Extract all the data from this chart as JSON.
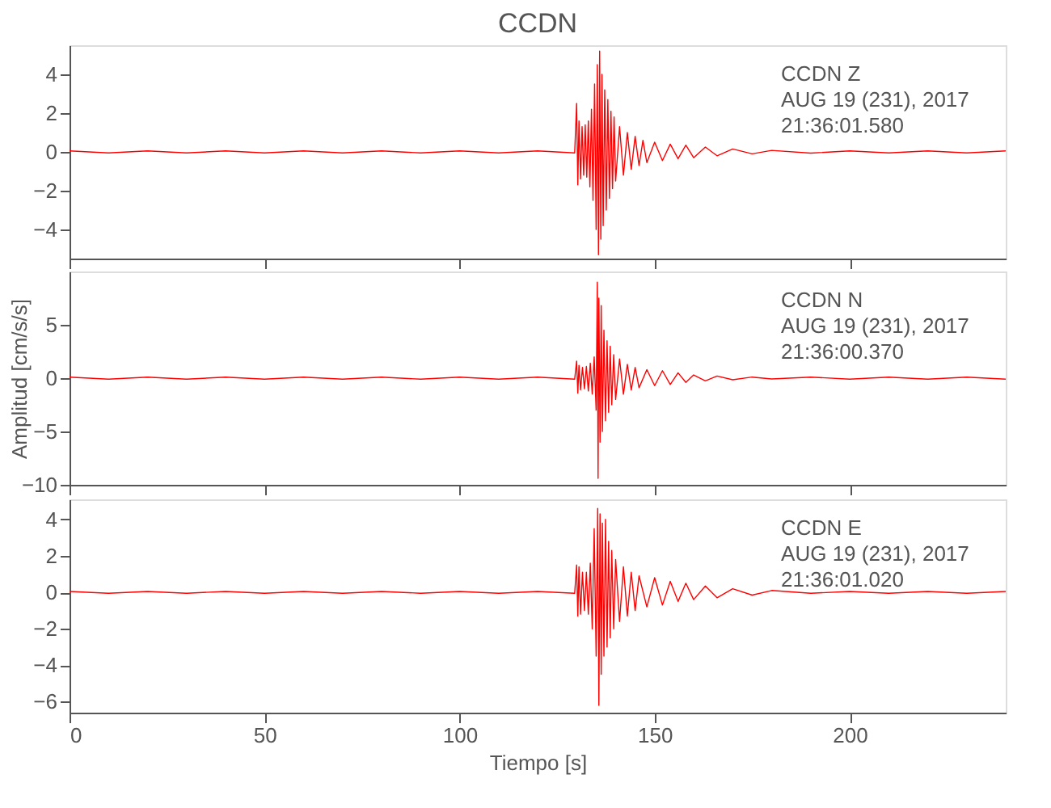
{
  "chart_data": [
    {
      "type": "line",
      "title": "CCDN",
      "annotations": [
        "CCDN   Z",
        "AUG 19 (231), 2017",
        "21:36:01.580"
      ],
      "xlim": [
        0,
        240
      ],
      "xticks": [
        0,
        50,
        100,
        150,
        200
      ],
      "ylim": [
        -5.5,
        5.5
      ],
      "yticks": [
        -4,
        -2,
        0,
        2,
        4
      ],
      "grid": false,
      "tick_labels": "y",
      "series": [
        {
          "color": "#ff0000",
          "x": [
            0,
            10,
            20,
            30,
            40,
            50,
            60,
            70,
            80,
            90,
            100,
            110,
            120,
            129.5,
            130.0,
            130.3,
            130.6,
            131,
            131.4,
            131.8,
            132.2,
            132.6,
            133,
            133.4,
            133.8,
            134.2,
            134.6,
            135,
            135.3,
            135.6,
            135.9,
            136.2,
            136.5,
            136.8,
            137.2,
            137.6,
            138,
            138.4,
            138.8,
            139.2,
            139.6,
            140,
            141,
            142,
            143,
            144,
            145,
            146,
            147,
            148,
            150,
            152,
            154,
            156,
            158,
            160,
            163,
            166,
            170,
            175,
            180,
            190,
            200,
            210,
            220,
            230,
            240
          ],
          "values": [
            0.05,
            -0.05,
            0.05,
            -0.05,
            0.05,
            -0.05,
            0.05,
            -0.05,
            0.05,
            -0.05,
            0.05,
            -0.05,
            0.05,
            -0.05,
            2.5,
            -1.7,
            1.6,
            -1.4,
            1.3,
            -1.2,
            1.4,
            -1.3,
            1.6,
            -1.8,
            2.2,
            -2.5,
            3.5,
            -4.0,
            4.5,
            -5.3,
            5.2,
            -4.5,
            4.0,
            -3.8,
            3.2,
            -3.0,
            2.7,
            -2.4,
            2.1,
            -1.9,
            1.8,
            -1.5,
            1.3,
            -1.2,
            1.0,
            -0.9,
            0.8,
            -0.7,
            0.6,
            -0.55,
            0.5,
            -0.45,
            0.4,
            -0.35,
            0.35,
            -0.3,
            0.25,
            -0.2,
            0.15,
            -0.1,
            0.08,
            -0.06,
            0.05,
            -0.05,
            0.05,
            -0.05,
            0.05
          ]
        }
      ]
    },
    {
      "type": "line",
      "ylabel": "Amplitud [cm/s/s]",
      "annotations": [
        "CCDN   N",
        "AUG 19 (231), 2017",
        "21:36:00.370"
      ],
      "xlim": [
        0,
        240
      ],
      "xticks": [
        0,
        50,
        100,
        150,
        200
      ],
      "ylim": [
        -10,
        10
      ],
      "yticks": [
        -10,
        -5,
        0,
        5
      ],
      "grid": false,
      "tick_labels": "y",
      "series": [
        {
          "color": "#ff0000",
          "x": [
            0,
            10,
            20,
            30,
            40,
            50,
            60,
            70,
            80,
            90,
            100,
            110,
            120,
            129.5,
            130,
            130.3,
            130.6,
            131,
            131.5,
            132,
            132.5,
            133,
            133.5,
            134,
            134.5,
            135,
            135.3,
            135.5,
            135.7,
            136,
            136.3,
            136.6,
            137,
            137.4,
            137.8,
            138.2,
            138.6,
            139,
            139.5,
            140,
            141,
            142,
            143,
            144,
            145,
            146,
            148,
            150,
            152,
            154,
            156,
            158,
            160,
            163,
            166,
            170,
            175,
            180,
            190,
            200,
            210,
            220,
            230,
            240
          ],
          "values": [
            0.1,
            -0.1,
            0.1,
            -0.1,
            0.1,
            -0.1,
            0.1,
            -0.1,
            0.1,
            -0.1,
            0.1,
            -0.1,
            0.1,
            -0.1,
            1.6,
            -1.4,
            1.2,
            -1.1,
            1.0,
            -1.0,
            1.1,
            -1.2,
            1.4,
            -1.5,
            2.0,
            -3.0,
            9.0,
            -9.4,
            7.5,
            -6.0,
            6.8,
            -5.0,
            4.5,
            -4.0,
            3.5,
            -3.2,
            3.0,
            -2.5,
            2.2,
            -2.0,
            1.8,
            -1.5,
            1.3,
            -1.1,
            1.0,
            -0.9,
            0.8,
            -0.7,
            0.7,
            -0.6,
            0.5,
            -0.4,
            0.3,
            -0.25,
            0.2,
            -0.15,
            0.1,
            -0.08,
            0.1,
            -0.1,
            0.1,
            -0.1,
            0.1,
            -0.1
          ]
        }
      ]
    },
    {
      "type": "line",
      "xlabel": "Tiempo [s]",
      "annotations": [
        "CCDN   E",
        "AUG 19 (231), 2017",
        "21:36:01.020"
      ],
      "xlim": [
        0,
        240
      ],
      "xticks": [
        0,
        50,
        100,
        150,
        200
      ],
      "ylim": [
        -6.6,
        5.1
      ],
      "yticks": [
        -6,
        -4,
        -2,
        0,
        2,
        4
      ],
      "grid": false,
      "series": [
        {
          "color": "#ff0000",
          "x": [
            0,
            10,
            20,
            30,
            40,
            50,
            60,
            70,
            80,
            90,
            100,
            110,
            120,
            129.5,
            130,
            130.3,
            130.6,
            131,
            131.5,
            132,
            132.5,
            133,
            133.5,
            134,
            134.5,
            135,
            135.4,
            135.7,
            136,
            136.3,
            136.6,
            137,
            137.4,
            137.8,
            138.2,
            138.6,
            139,
            139.5,
            140,
            141,
            142,
            143,
            144,
            145,
            146,
            148,
            150,
            152,
            154,
            156,
            158,
            160,
            163,
            166,
            170,
            175,
            180,
            190,
            200,
            210,
            220,
            230,
            240
          ],
          "values": [
            0.05,
            -0.05,
            0.05,
            -0.05,
            0.05,
            -0.05,
            0.05,
            -0.05,
            0.05,
            -0.05,
            0.05,
            -0.05,
            0.05,
            -0.05,
            1.5,
            -1.3,
            1.4,
            -1.2,
            1.1,
            -1.0,
            1.1,
            -1.2,
            1.6,
            -2.0,
            3.5,
            -3.5,
            4.6,
            -6.2,
            4.3,
            -4.5,
            3.8,
            -3.5,
            4.0,
            -3.0,
            2.8,
            -2.5,
            2.3,
            -2.0,
            1.8,
            -1.6,
            1.4,
            -1.3,
            1.1,
            -1.0,
            0.9,
            -0.8,
            0.8,
            -0.7,
            0.6,
            -0.5,
            0.5,
            -0.4,
            0.35,
            -0.3,
            0.2,
            -0.15,
            0.1,
            -0.05,
            0.05,
            -0.05,
            0.05,
            -0.05,
            0.05
          ]
        }
      ]
    }
  ]
}
